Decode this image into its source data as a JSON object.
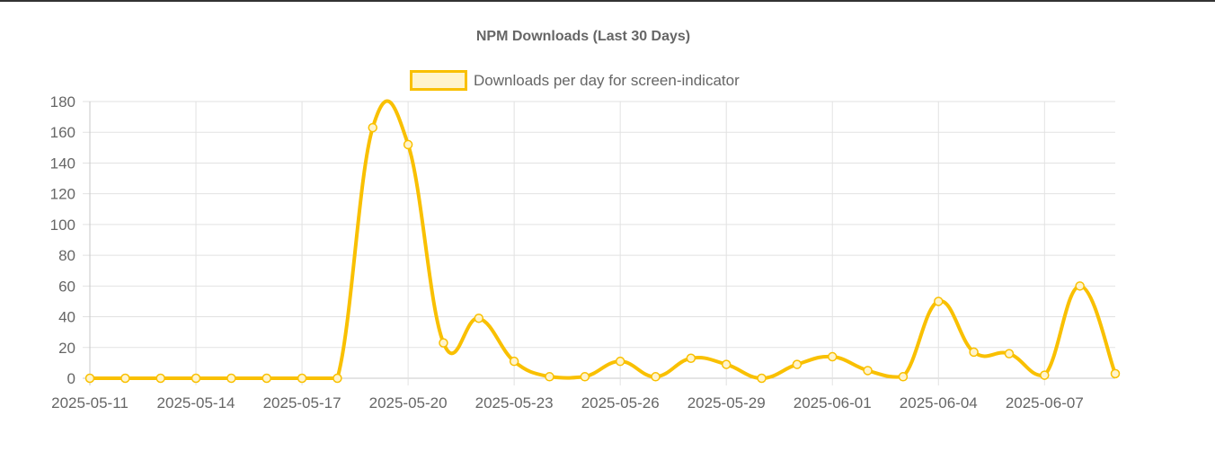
{
  "chart_data": {
    "type": "line",
    "title": "NPM Downloads (Last 30 Days)",
    "xlabel": "",
    "ylabel": "",
    "ylim": [
      0,
      180
    ],
    "yticks": [
      0,
      20,
      40,
      60,
      80,
      100,
      120,
      140,
      160,
      180
    ],
    "xtick_labels": [
      "2025-05-11",
      "2025-05-14",
      "2025-05-17",
      "2025-05-20",
      "2025-05-23",
      "2025-05-26",
      "2025-05-29",
      "2025-06-01",
      "2025-06-04",
      "2025-06-07"
    ],
    "x": [
      "2025-05-11",
      "2025-05-12",
      "2025-05-13",
      "2025-05-14",
      "2025-05-15",
      "2025-05-16",
      "2025-05-17",
      "2025-05-18",
      "2025-05-19",
      "2025-05-20",
      "2025-05-21",
      "2025-05-22",
      "2025-05-23",
      "2025-05-24",
      "2025-05-25",
      "2025-05-26",
      "2025-05-27",
      "2025-05-28",
      "2025-05-29",
      "2025-05-30",
      "2025-05-31",
      "2025-06-01",
      "2025-06-02",
      "2025-06-03",
      "2025-06-04",
      "2025-06-05",
      "2025-06-06",
      "2025-06-07",
      "2025-06-08",
      "2025-06-09"
    ],
    "series": [
      {
        "name": "Downloads per day for screen-indicator",
        "values": [
          0,
          0,
          0,
          0,
          0,
          0,
          0,
          0,
          163,
          152,
          23,
          39,
          11,
          1,
          1,
          11,
          1,
          13,
          9,
          0,
          9,
          14,
          5,
          1,
          50,
          17,
          16,
          2,
          60,
          3
        ],
        "color": "#f9c000",
        "fill_color": "#fff4cc"
      }
    ],
    "grid": true,
    "legend_position": "top"
  }
}
